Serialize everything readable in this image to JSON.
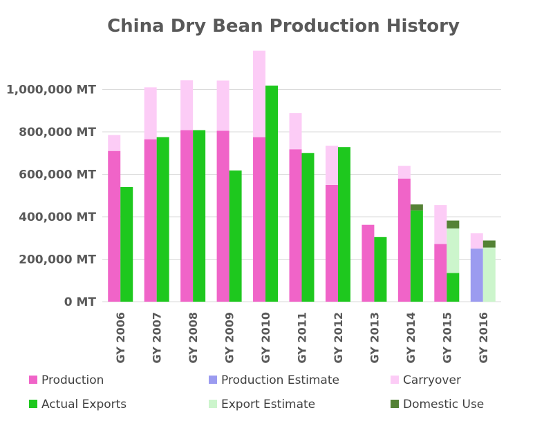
{
  "chart_data": {
    "type": "bar",
    "title": "China Dry Bean Production History",
    "xlabel": "",
    "ylabel": "",
    "ylim": [
      0,
      1200000
    ],
    "y_ticks": [
      {
        "value": 0,
        "label": "0 MT"
      },
      {
        "value": 200000,
        "label": "200,000 MT"
      },
      {
        "value": 400000,
        "label": "400,000 MT"
      },
      {
        "value": 600000,
        "label": "600,000 MT"
      },
      {
        "value": 800000,
        "label": "800,000 MT"
      },
      {
        "value": 1000000,
        "label": "1,000,000 MT"
      }
    ],
    "grid": true,
    "legend_position": "bottom",
    "categories": [
      "GY 2006",
      "GY 2007",
      "GY 2008",
      "GY 2009",
      "GY 2010",
      "GY 2011",
      "GY 2012",
      "GY 2013",
      "GY 2014",
      "GY 2015",
      "GY 2016"
    ],
    "supply_stack": [
      {
        "name": "Production",
        "color": "#f064c8",
        "values": [
          710000,
          765000,
          808000,
          805000,
          775000,
          718000,
          550000,
          362000,
          580000,
          272000,
          null
        ]
      },
      {
        "name": "Production Estimate",
        "color": "#9b9bf0",
        "values": [
          null,
          null,
          null,
          null,
          null,
          null,
          null,
          null,
          null,
          null,
          250000
        ]
      },
      {
        "name": "Carryover",
        "color": "#fcccf6",
        "values": [
          75000,
          245000,
          235000,
          237000,
          407000,
          170000,
          185000,
          0,
          60000,
          183000,
          72000
        ]
      }
    ],
    "demand_stack": [
      {
        "name": "Actual Exports",
        "color": "#1ec81e",
        "values": [
          540000,
          775000,
          808000,
          618000,
          1018000,
          700000,
          728000,
          305000,
          430000,
          135000,
          null
        ]
      },
      {
        "name": "Export Estimate",
        "color": "#ccf5cc",
        "values": [
          null,
          null,
          null,
          null,
          null,
          null,
          null,
          null,
          null,
          210000,
          255000
        ]
      },
      {
        "name": "Domestic Use",
        "color": "#548235",
        "values": [
          null,
          null,
          null,
          null,
          null,
          null,
          null,
          null,
          28000,
          37000,
          33000
        ]
      }
    ],
    "legend": [
      {
        "name": "Production",
        "color": "#f064c8"
      },
      {
        "name": "Production Estimate",
        "color": "#9b9bf0"
      },
      {
        "name": "Carryover",
        "color": "#fcccf6"
      },
      {
        "name": "Actual Exports",
        "color": "#1ec81e"
      },
      {
        "name": "Export Estimate",
        "color": "#ccf5cc"
      },
      {
        "name": "Domestic Use",
        "color": "#548235"
      }
    ],
    "colors": {
      "grid": "#d9d9d9",
      "text": "#595959",
      "axis": "#d9d9d9"
    }
  }
}
